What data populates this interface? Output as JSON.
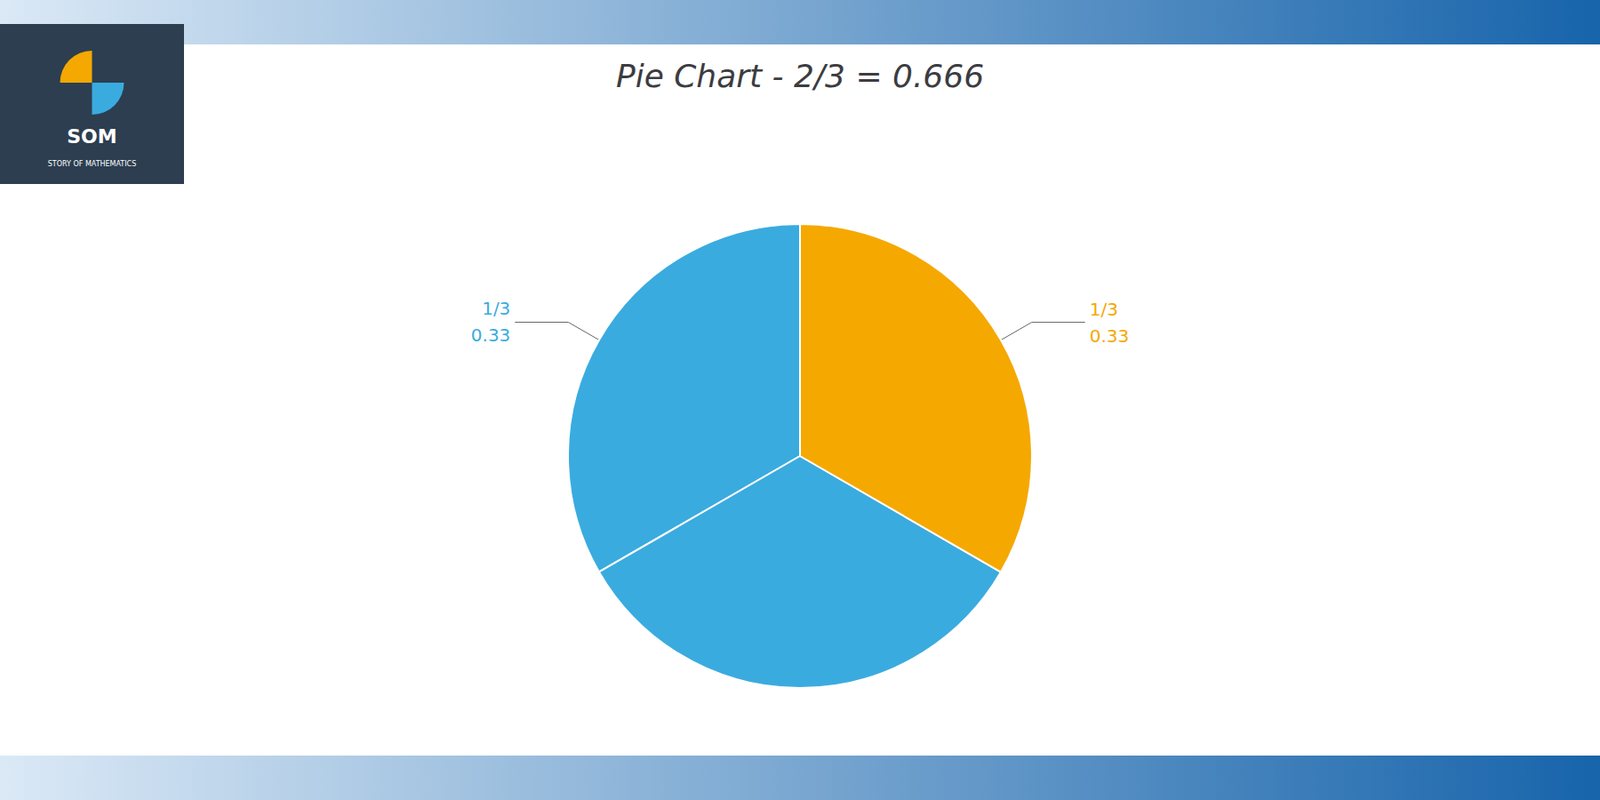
{
  "chart_data": {
    "type": "pie",
    "title": "Pie Chart - 2/3 = 0.666",
    "categories": [
      null,
      null,
      null
    ],
    "values": [
      0.3333,
      0.3333,
      0.3334
    ],
    "value_labels": [
      "1/3\n0.33",
      null,
      "1/3\n0.33"
    ],
    "colors": [
      "#3AABDF",
      "#3AABDF",
      "#F5A800"
    ],
    "annotations": [
      "SOM",
      "STORY OF MATHEMATICS"
    ]
  }
}
